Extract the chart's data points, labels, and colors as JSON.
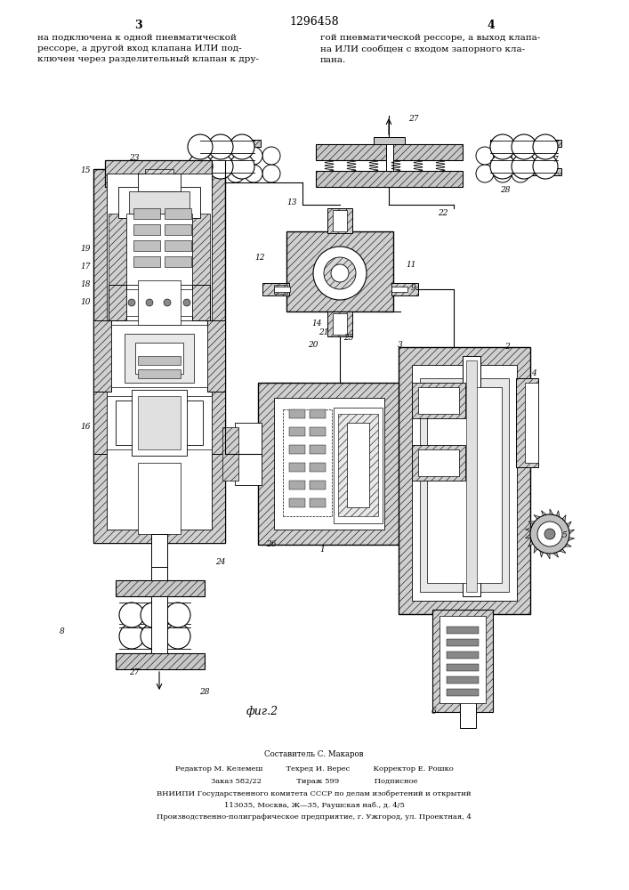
{
  "patent_number": "1296458",
  "page_left": "3",
  "page_right": "4",
  "text_left": "на подключена к одной пневматической\nрессоре, а другой вход клапана ИЛИ под-\nключен через разделительный клапан к дру-",
  "text_right": "гой пневматической рессоре, а выход клапа-\nна ИЛИ сообщен с входом запорного кла-\nпана.",
  "fig_caption": "фиг.2",
  "footer_line1": "Составитель С. Макаров",
  "footer_line2_col1": "Редактор М. Келемеш",
  "footer_line2_col2": "Техред И. Верес",
  "footer_line2_col3": "Корректор Е. Рошко",
  "footer_line3_col1": "Заказ 582/22",
  "footer_line3_col2": "Тираж 599",
  "footer_line3_col3": "Подписное",
  "footer_line4": "ВНИИПИ Государственного комитета СССР по делам изобретений и открытий",
  "footer_line5": "113035, Москва, Ж—35, Раушская наб., д. 4/5",
  "footer_line6": "Производственно-полиграфическое предприятие, г. Ужгород, ул. Проектная, 4",
  "bg_color": "#ffffff"
}
